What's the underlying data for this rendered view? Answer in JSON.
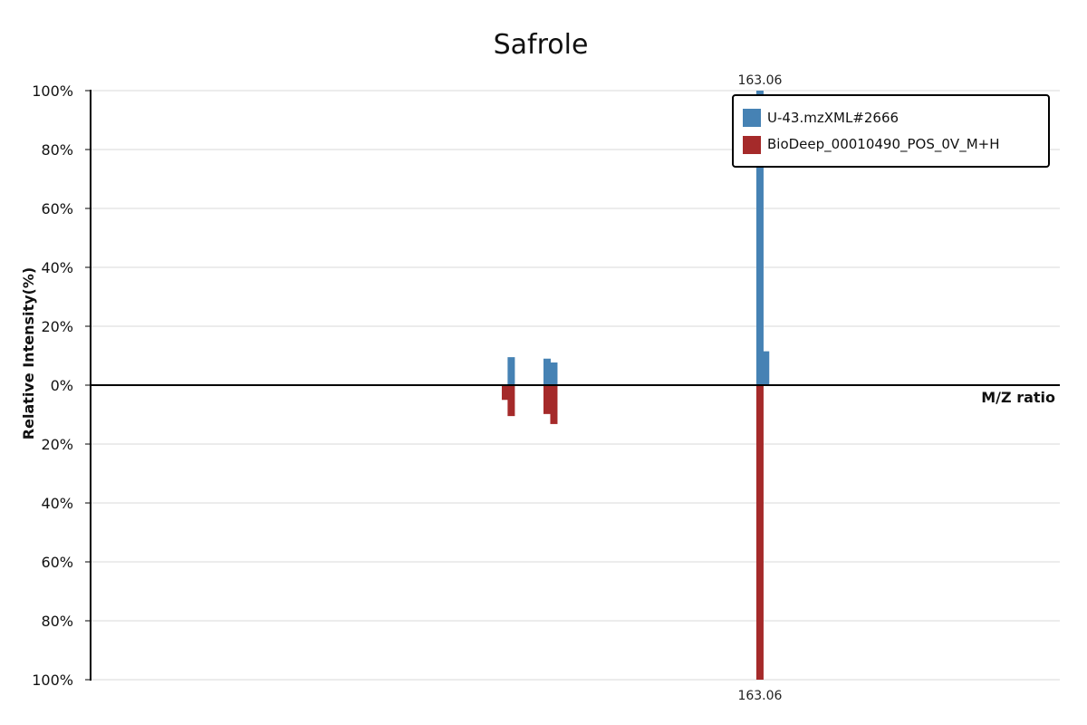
{
  "chart_data": {
    "type": "bar",
    "title": "Safrole",
    "xlabel": "M/Z ratio",
    "ylabel": "Relative Intensity(%)",
    "ylim": [
      -100,
      100
    ],
    "y_ticks_top": [
      "100%",
      "80%",
      "60%",
      "40%",
      "20%",
      "0%"
    ],
    "y_ticks_bottom": [
      "20%",
      "40%",
      "60%",
      "80%",
      "100%"
    ],
    "xlim": [
      94,
      194
    ],
    "legend_position": "top-right",
    "series": [
      {
        "name": "U-43.mzXML#2666",
        "color": "#4682b4",
        "direction": "up",
        "peaks": [
          {
            "mz": 137.4,
            "intensity": 9.5
          },
          {
            "mz": 141.1,
            "intensity": 9.0
          },
          {
            "mz": 141.8,
            "intensity": 7.7
          },
          {
            "mz": 163.06,
            "intensity": 100
          },
          {
            "mz": 163.65,
            "intensity": 11.5
          }
        ]
      },
      {
        "name": "BioDeep_00010490_POS_0V_M+H",
        "color": "#a52a2a",
        "direction": "down",
        "peaks": [
          {
            "mz": 136.8,
            "intensity": 5.0
          },
          {
            "mz": 137.4,
            "intensity": 10.5
          },
          {
            "mz": 141.1,
            "intensity": 9.8
          },
          {
            "mz": 141.8,
            "intensity": 13.2
          },
          {
            "mz": 163.06,
            "intensity": 100
          }
        ]
      }
    ],
    "annotations": [
      {
        "text": "163.06",
        "mz": 163.06,
        "side": "top"
      },
      {
        "text": "163.06",
        "mz": 163.06,
        "side": "bottom"
      }
    ]
  }
}
